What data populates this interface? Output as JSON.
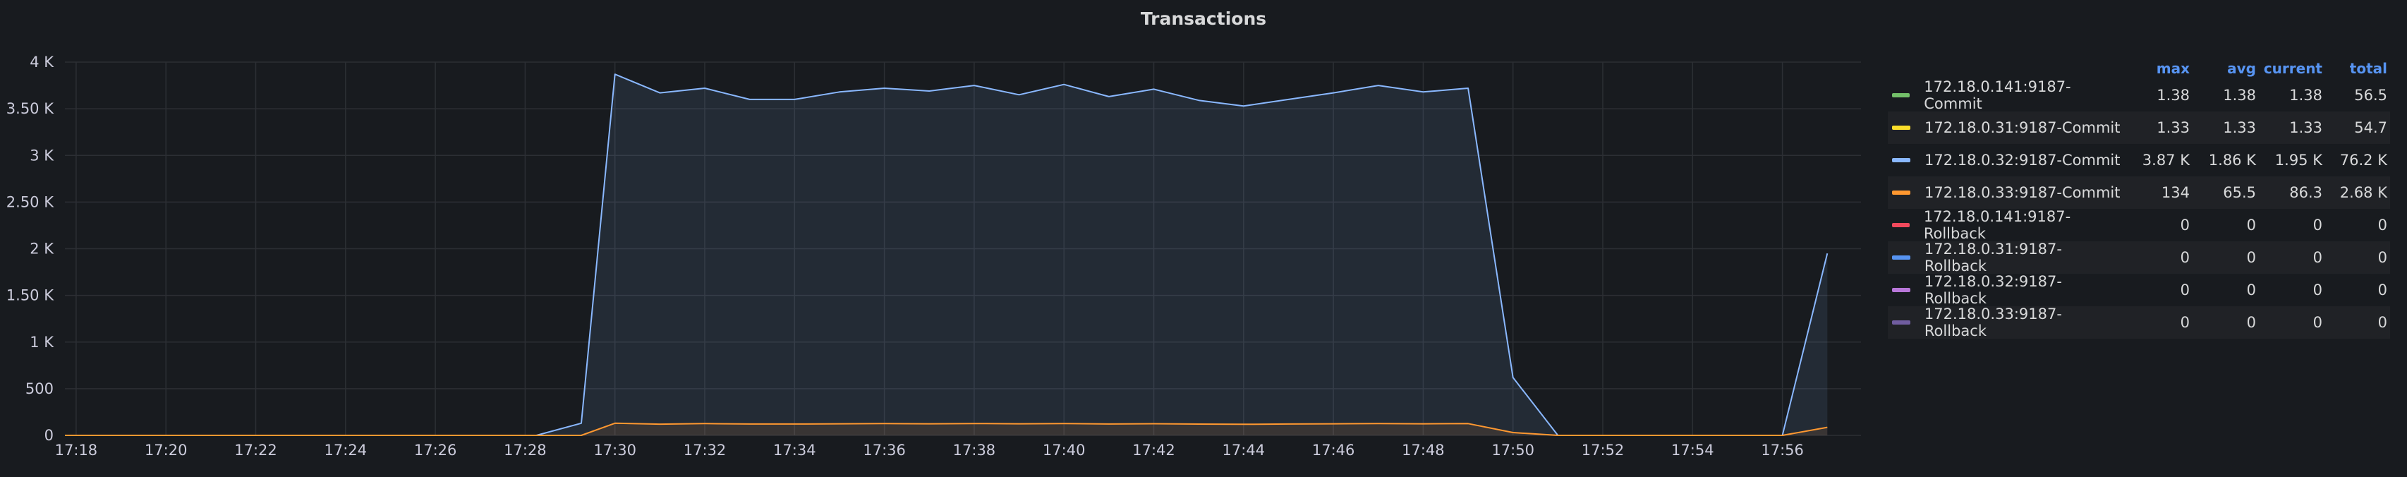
{
  "panel": {
    "title": "Transactions"
  },
  "chart_data": {
    "type": "area",
    "title": "Transactions",
    "ylim": [
      0,
      4000
    ],
    "yticks": [
      0,
      500,
      1000,
      1500,
      2000,
      2500,
      3000,
      3500,
      4000
    ],
    "ytick_labels": [
      "0",
      "500",
      "1 K",
      "1.50 K",
      "2 K",
      "2.50 K",
      "3 K",
      "3.50 K",
      "4 K"
    ],
    "x_range": [
      "17:17:45",
      "17:57:45"
    ],
    "xtick_labels": [
      "17:18",
      "17:20",
      "17:22",
      "17:24",
      "17:26",
      "17:28",
      "17:30",
      "17:32",
      "17:34",
      "17:36",
      "17:38",
      "17:40",
      "17:42",
      "17:44",
      "17:46",
      "17:48",
      "17:50",
      "17:52",
      "17:54",
      "17:56"
    ],
    "grid": true,
    "legend_placement": "right",
    "x": [
      "17:17:45",
      "17:28:15",
      "17:29:15",
      "17:30:00",
      "17:31:00",
      "17:32:00",
      "17:33:00",
      "17:34:00",
      "17:35:00",
      "17:36:00",
      "17:37:00",
      "17:38:00",
      "17:39:00",
      "17:40:00",
      "17:41:00",
      "17:42:00",
      "17:43:00",
      "17:44:00",
      "17:45:00",
      "17:46:00",
      "17:47:00",
      "17:48:00",
      "17:49:00",
      "17:50:00",
      "17:51:00",
      "17:52:00",
      "17:53:00",
      "17:54:00",
      "17:55:00",
      "17:56:00",
      "17:57:00"
    ],
    "series": [
      {
        "name": "172.18.0.32:9187-Commit",
        "color": "#8ab8ff",
        "values": [
          0,
          0,
          130,
          3870,
          3670,
          3720,
          3600,
          3600,
          3680,
          3720,
          3690,
          3750,
          3650,
          3760,
          3630,
          3710,
          3590,
          3530,
          3600,
          3670,
          3750,
          3680,
          3720,
          620,
          0,
          0,
          0,
          0,
          0,
          0,
          1950
        ]
      },
      {
        "name": "172.18.0.33:9187-Commit",
        "color": "#ff9830",
        "values": [
          0,
          0,
          0,
          130,
          120,
          126,
          122,
          122,
          124,
          126,
          124,
          127,
          124,
          127,
          122,
          125,
          121,
          119,
          122,
          124,
          127,
          124,
          126,
          30,
          0,
          0,
          0,
          0,
          0,
          0,
          86
        ]
      }
    ]
  },
  "legend": {
    "headers": {
      "max": "max",
      "avg": "avg",
      "current": "current",
      "total": "total"
    },
    "items": [
      {
        "name": "172.18.0.141:9187-Commit",
        "color": "#73bf69",
        "max": "1.38",
        "avg": "1.38",
        "current": "1.38",
        "total": "56.5"
      },
      {
        "name": "172.18.0.31:9187-Commit",
        "color": "#fade2a",
        "max": "1.33",
        "avg": "1.33",
        "current": "1.33",
        "total": "54.7"
      },
      {
        "name": "172.18.0.32:9187-Commit",
        "color": "#8ab8ff",
        "max": "3.87 K",
        "avg": "1.86 K",
        "current": "1.95 K",
        "total": "76.2 K"
      },
      {
        "name": "172.18.0.33:9187-Commit",
        "color": "#ff9830",
        "max": "134",
        "avg": "65.5",
        "current": "86.3",
        "total": "2.68 K"
      },
      {
        "name": "172.18.0.141:9187-Rollback",
        "color": "#f2495c",
        "max": "0",
        "avg": "0",
        "current": "0",
        "total": "0"
      },
      {
        "name": "172.18.0.31:9187-Rollback",
        "color": "#5794f2",
        "max": "0",
        "avg": "0",
        "current": "0",
        "total": "0"
      },
      {
        "name": "172.18.0.32:9187-Rollback",
        "color": "#b877d9",
        "max": "0",
        "avg": "0",
        "current": "0",
        "total": "0"
      },
      {
        "name": "172.18.0.33:9187-Rollback",
        "color": "#705da0",
        "max": "0",
        "avg": "0",
        "current": "0",
        "total": "0"
      }
    ]
  }
}
